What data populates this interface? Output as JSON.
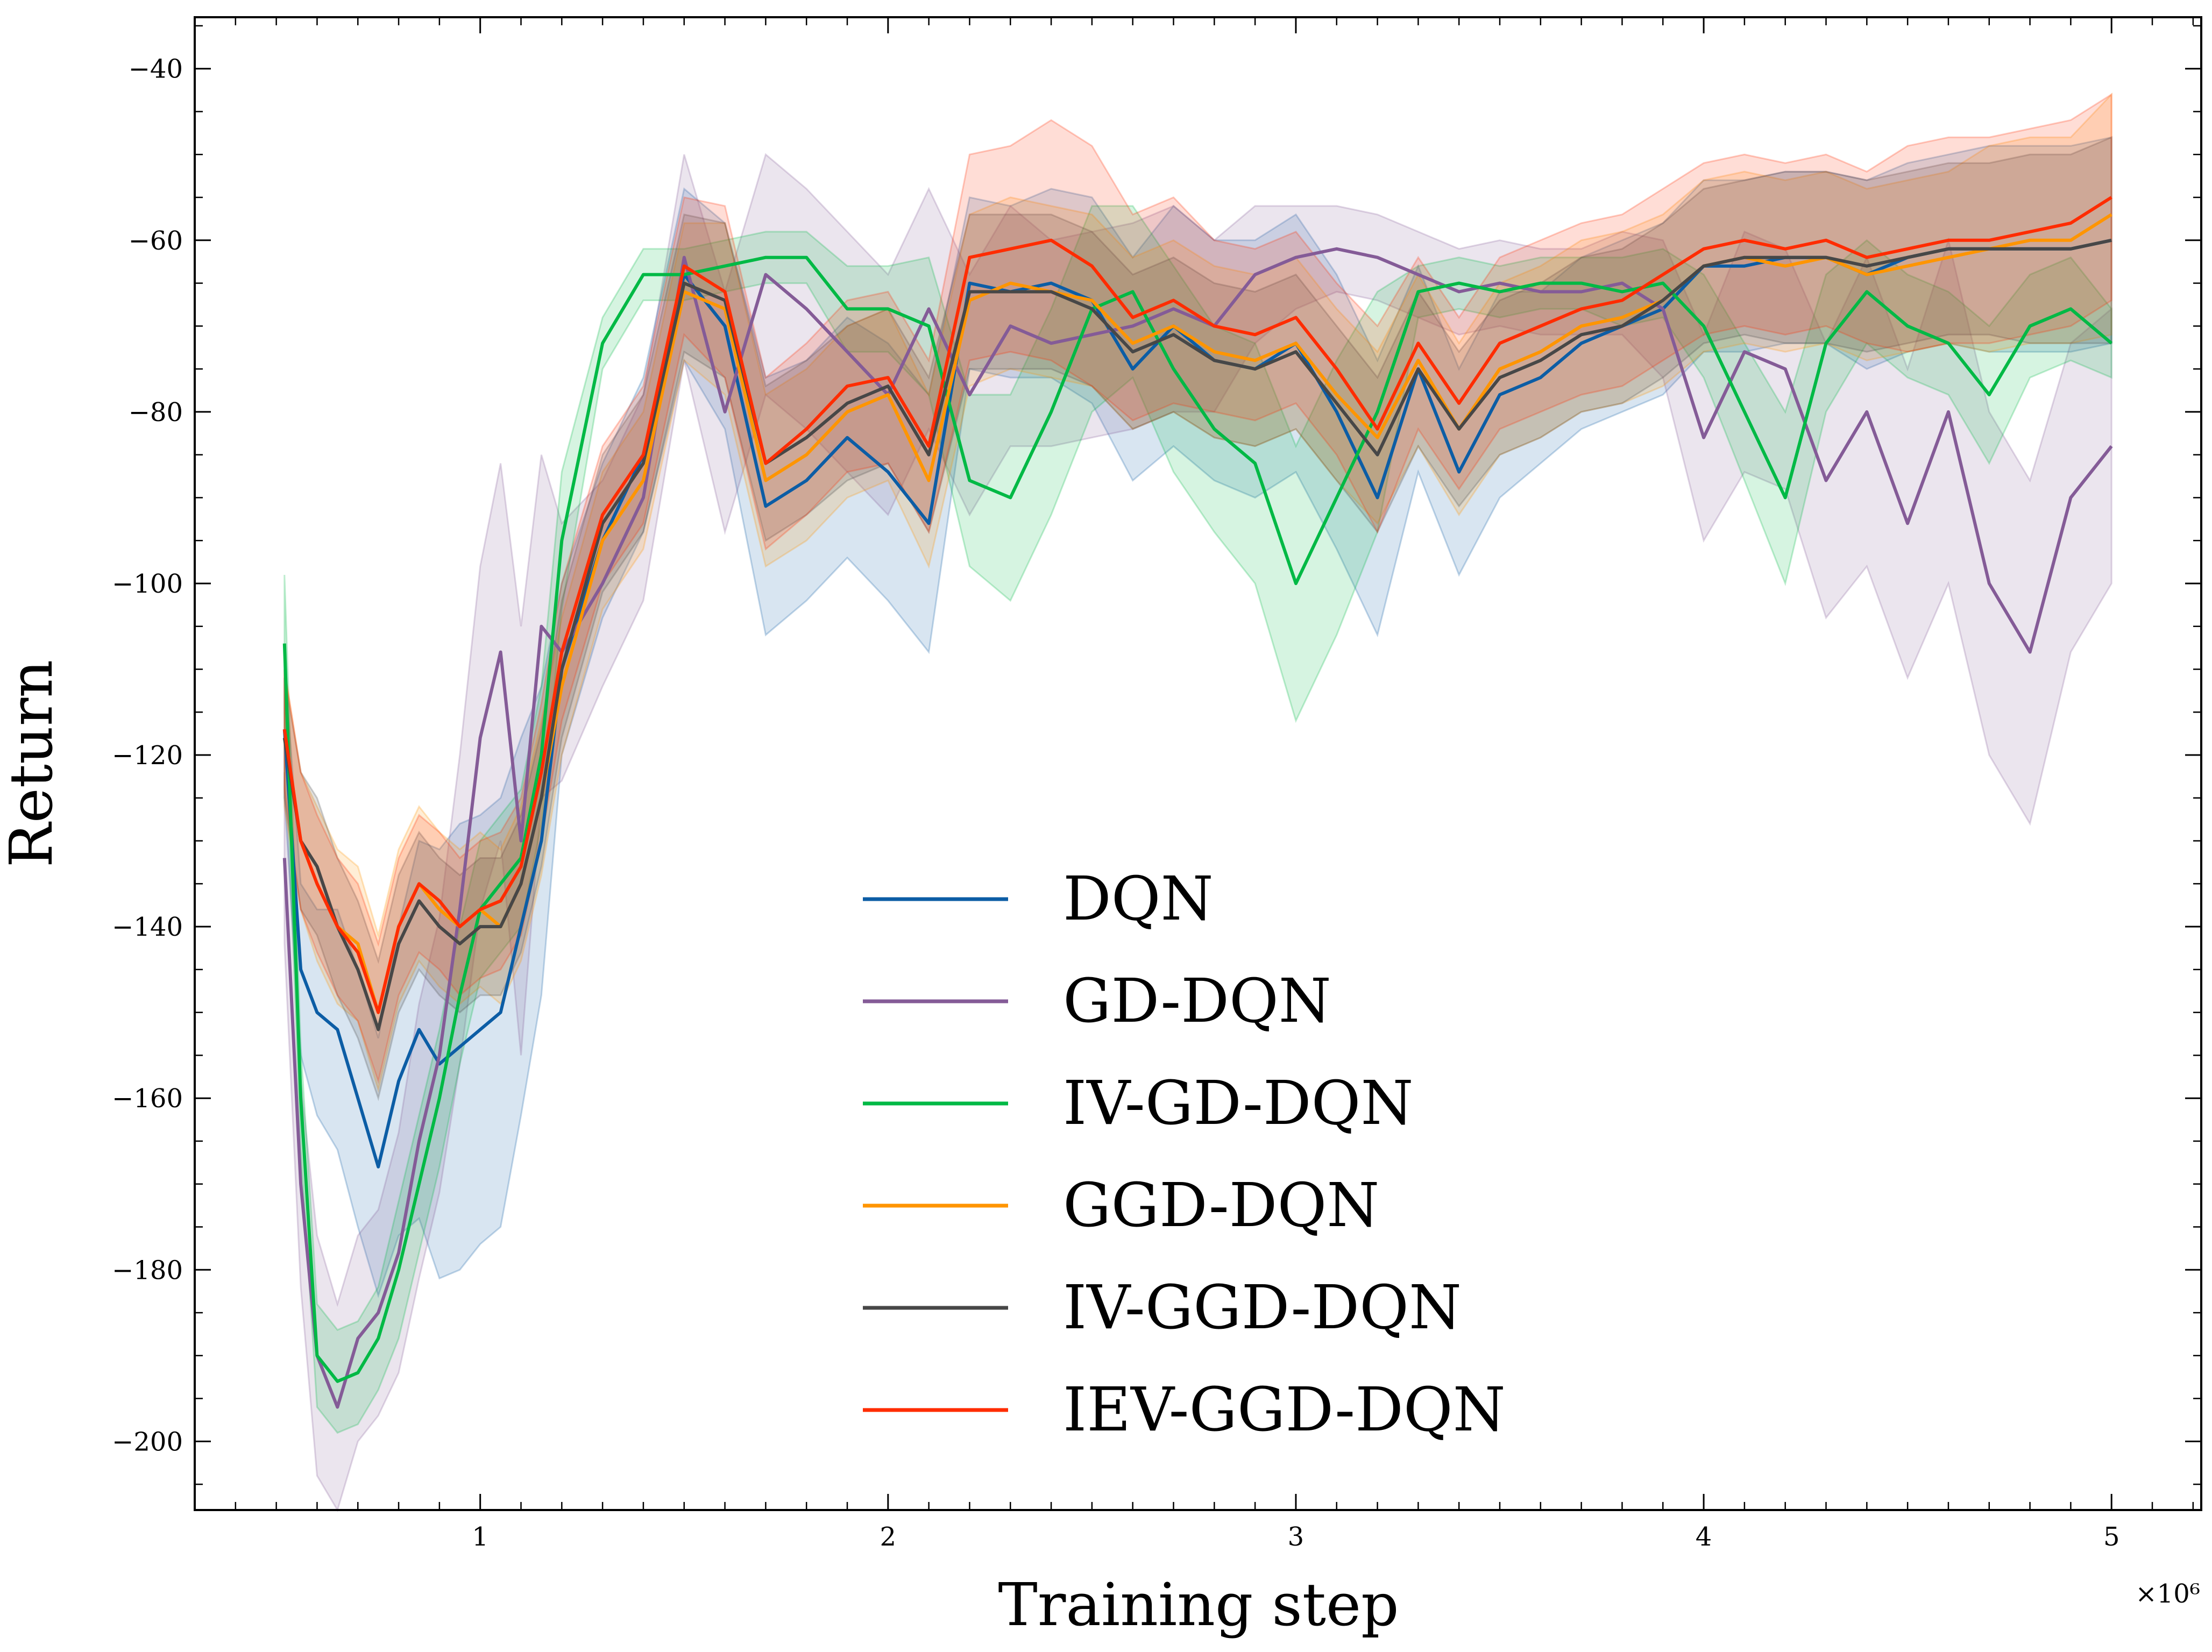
{
  "chart_data": {
    "type": "line",
    "title": "",
    "xlabel": "Training step",
    "ylabel": "Return",
    "x_multiplier_label": "×10⁶",
    "xlim": [
      0.3,
      5.22
    ],
    "ylim": [
      -208,
      -34
    ],
    "xticks": [
      1,
      2,
      3,
      4,
      5
    ],
    "xtick_labels": [
      "1",
      "2",
      "3",
      "4",
      "5"
    ],
    "yticks": [
      -200,
      -180,
      -160,
      -140,
      -120,
      -100,
      -80,
      -60,
      -40
    ],
    "ytick_labels": [
      "−200",
      "−180",
      "−160",
      "−140",
      "−120",
      "−100",
      "−80",
      "−60",
      "−40"
    ],
    "grid": false,
    "legend_position": "lower-center",
    "x": [
      0.52,
      0.56,
      0.6,
      0.65,
      0.7,
      0.75,
      0.8,
      0.85,
      0.9,
      0.95,
      1.0,
      1.05,
      1.1,
      1.15,
      1.2,
      1.3,
      1.4,
      1.5,
      1.6,
      1.7,
      1.8,
      1.9,
      2.0,
      2.1,
      2.2,
      2.3,
      2.4,
      2.5,
      2.6,
      2.7,
      2.8,
      2.9,
      3.0,
      3.1,
      3.2,
      3.3,
      3.4,
      3.5,
      3.6,
      3.7,
      3.8,
      3.9,
      4.0,
      4.1,
      4.2,
      4.3,
      4.4,
      4.5,
      4.6,
      4.7,
      4.8,
      4.9,
      5.0
    ],
    "series": [
      {
        "name": "DQN",
        "color": "#0c5da5",
        "values": [
          -117,
          -145,
          -150,
          -152,
          -160,
          -168,
          -158,
          -152,
          -156,
          -154,
          -152,
          -150,
          -140,
          -130,
          -110,
          -95,
          -85,
          -64,
          -70,
          -91,
          -88,
          -83,
          -87,
          -93,
          -65,
          -66,
          -65,
          -67,
          -75,
          -70,
          -74,
          -75,
          -72,
          -80,
          -90,
          -75,
          -87,
          -78,
          -76,
          -72,
          -70,
          -68,
          -63,
          -63,
          -62,
          -62,
          -64,
          -62,
          -61,
          -61,
          -61,
          -61,
          -60
        ],
        "band": [
          8,
          10,
          12,
          14,
          15,
          15,
          18,
          22,
          25,
          26,
          25,
          25,
          22,
          18,
          10,
          9,
          9,
          10,
          12,
          15,
          14,
          14,
          15,
          15,
          10,
          10,
          11,
          12,
          13,
          14,
          14,
          15,
          15,
          16,
          16,
          12,
          12,
          12,
          10,
          10,
          10,
          10,
          10,
          10,
          10,
          10,
          11,
          11,
          11,
          12,
          12,
          12,
          12
        ]
      },
      {
        "name": "GD-DQN",
        "color": "#845b97",
        "values": [
          -132,
          -170,
          -190,
          -196,
          -188,
          -185,
          -178,
          -165,
          -155,
          -138,
          -118,
          -108,
          -130,
          -105,
          -108,
          -100,
          -90,
          -62,
          -80,
          -64,
          -68,
          -73,
          -78,
          -68,
          -78,
          -70,
          -72,
          -71,
          -70,
          -68,
          -70,
          -64,
          -62,
          -61,
          -62,
          -64,
          -66,
          -65,
          -66,
          -66,
          -65,
          -68,
          -83,
          -73,
          -75,
          -88,
          -80,
          -93,
          -80,
          -100,
          -108,
          -90,
          -84
        ],
        "band": [
          10,
          12,
          14,
          12,
          12,
          12,
          14,
          16,
          16,
          18,
          20,
          22,
          25,
          20,
          15,
          12,
          12,
          12,
          14,
          14,
          14,
          14,
          14,
          14,
          14,
          14,
          12,
          12,
          12,
          12,
          10,
          8,
          6,
          5,
          5,
          5,
          5,
          5,
          5,
          5,
          6,
          8,
          12,
          14,
          14,
          16,
          18,
          18,
          20,
          20,
          20,
          18,
          16
        ]
      },
      {
        "name": "IV-GD-DQN",
        "color": "#00b945",
        "values": [
          -107,
          -160,
          -190,
          -193,
          -192,
          -188,
          -180,
          -170,
          -160,
          -148,
          -138,
          -135,
          -132,
          -120,
          -95,
          -72,
          -64,
          -64,
          -63,
          -62,
          -62,
          -68,
          -68,
          -70,
          -88,
          -90,
          -80,
          -68,
          -66,
          -75,
          -82,
          -86,
          -100,
          -90,
          -80,
          -66,
          -65,
          -66,
          -65,
          -65,
          -66,
          -65,
          -70,
          -80,
          -90,
          -72,
          -66,
          -70,
          -72,
          -78,
          -70,
          -68,
          -72
        ],
        "band": [
          8,
          6,
          6,
          6,
          6,
          6,
          8,
          8,
          8,
          8,
          8,
          8,
          8,
          8,
          8,
          3,
          3,
          3,
          3,
          3,
          3,
          5,
          5,
          8,
          10,
          12,
          12,
          12,
          10,
          12,
          12,
          14,
          16,
          16,
          14,
          3,
          3,
          3,
          3,
          3,
          4,
          4,
          6,
          8,
          10,
          8,
          6,
          6,
          6,
          8,
          6,
          6,
          4
        ]
      },
      {
        "name": "GGD-DQN",
        "color": "#ff9500",
        "values": [
          -118,
          -130,
          -135,
          -140,
          -142,
          -150,
          -140,
          -135,
          -138,
          -140,
          -138,
          -140,
          -135,
          -125,
          -112,
          -95,
          -88,
          -66,
          -68,
          -88,
          -85,
          -80,
          -78,
          -88,
          -67,
          -65,
          -66,
          -67,
          -72,
          -70,
          -73,
          -74,
          -72,
          -78,
          -83,
          -74,
          -82,
          -75,
          -73,
          -70,
          -69,
          -67,
          -63,
          -62,
          -63,
          -62,
          -64,
          -63,
          -62,
          -61,
          -60,
          -60,
          -57
        ],
        "band": [
          8,
          8,
          9,
          9,
          9,
          9,
          9,
          9,
          9,
          9,
          9,
          9,
          9,
          9,
          8,
          8,
          8,
          8,
          10,
          10,
          10,
          10,
          10,
          10,
          10,
          10,
          10,
          10,
          10,
          10,
          10,
          10,
          10,
          10,
          10,
          10,
          10,
          10,
          10,
          10,
          10,
          10,
          10,
          10,
          10,
          10,
          10,
          10,
          10,
          12,
          12,
          12,
          14
        ]
      },
      {
        "name": "IV-GGD-DQN",
        "color": "#474747",
        "values": [
          -118,
          -130,
          -133,
          -140,
          -145,
          -152,
          -142,
          -137,
          -140,
          -142,
          -140,
          -140,
          -135,
          -125,
          -110,
          -93,
          -86,
          -65,
          -67,
          -86,
          -83,
          -79,
          -77,
          -85,
          -66,
          -66,
          -66,
          -68,
          -73,
          -71,
          -74,
          -75,
          -73,
          -79,
          -85,
          -75,
          -82,
          -76,
          -74,
          -71,
          -70,
          -67,
          -63,
          -62,
          -62,
          -62,
          -63,
          -62,
          -61,
          -61,
          -61,
          -61,
          -60
        ],
        "band": [
          7,
          8,
          8,
          8,
          8,
          8,
          8,
          8,
          8,
          8,
          8,
          8,
          8,
          8,
          8,
          8,
          8,
          8,
          9,
          9,
          9,
          9,
          9,
          9,
          9,
          9,
          9,
          9,
          9,
          9,
          9,
          9,
          9,
          9,
          9,
          9,
          9,
          9,
          9,
          9,
          9,
          9,
          9,
          9,
          10,
          10,
          10,
          10,
          10,
          10,
          11,
          11,
          12
        ]
      },
      {
        "name": "IEV-GGD-DQN",
        "color": "#ff2c00",
        "values": [
          -117,
          -130,
          -135,
          -140,
          -143,
          -150,
          -140,
          -135,
          -137,
          -140,
          -138,
          -137,
          -133,
          -122,
          -108,
          -92,
          -85,
          -63,
          -66,
          -86,
          -82,
          -77,
          -76,
          -84,
          -62,
          -61,
          -60,
          -63,
          -69,
          -67,
          -70,
          -71,
          -69,
          -75,
          -82,
          -72,
          -79,
          -72,
          -70,
          -68,
          -67,
          -64,
          -61,
          -60,
          -61,
          -60,
          -62,
          -61,
          -60,
          -60,
          -59,
          -58,
          -55
        ],
        "band": [
          7,
          8,
          8,
          8,
          8,
          8,
          8,
          8,
          8,
          8,
          8,
          8,
          8,
          8,
          8,
          8,
          8,
          8,
          10,
          10,
          10,
          10,
          10,
          10,
          12,
          12,
          14,
          14,
          12,
          12,
          10,
          10,
          10,
          10,
          12,
          10,
          10,
          10,
          10,
          10,
          10,
          10,
          10,
          10,
          10,
          10,
          10,
          12,
          12,
          12,
          12,
          12,
          12
        ]
      }
    ]
  }
}
